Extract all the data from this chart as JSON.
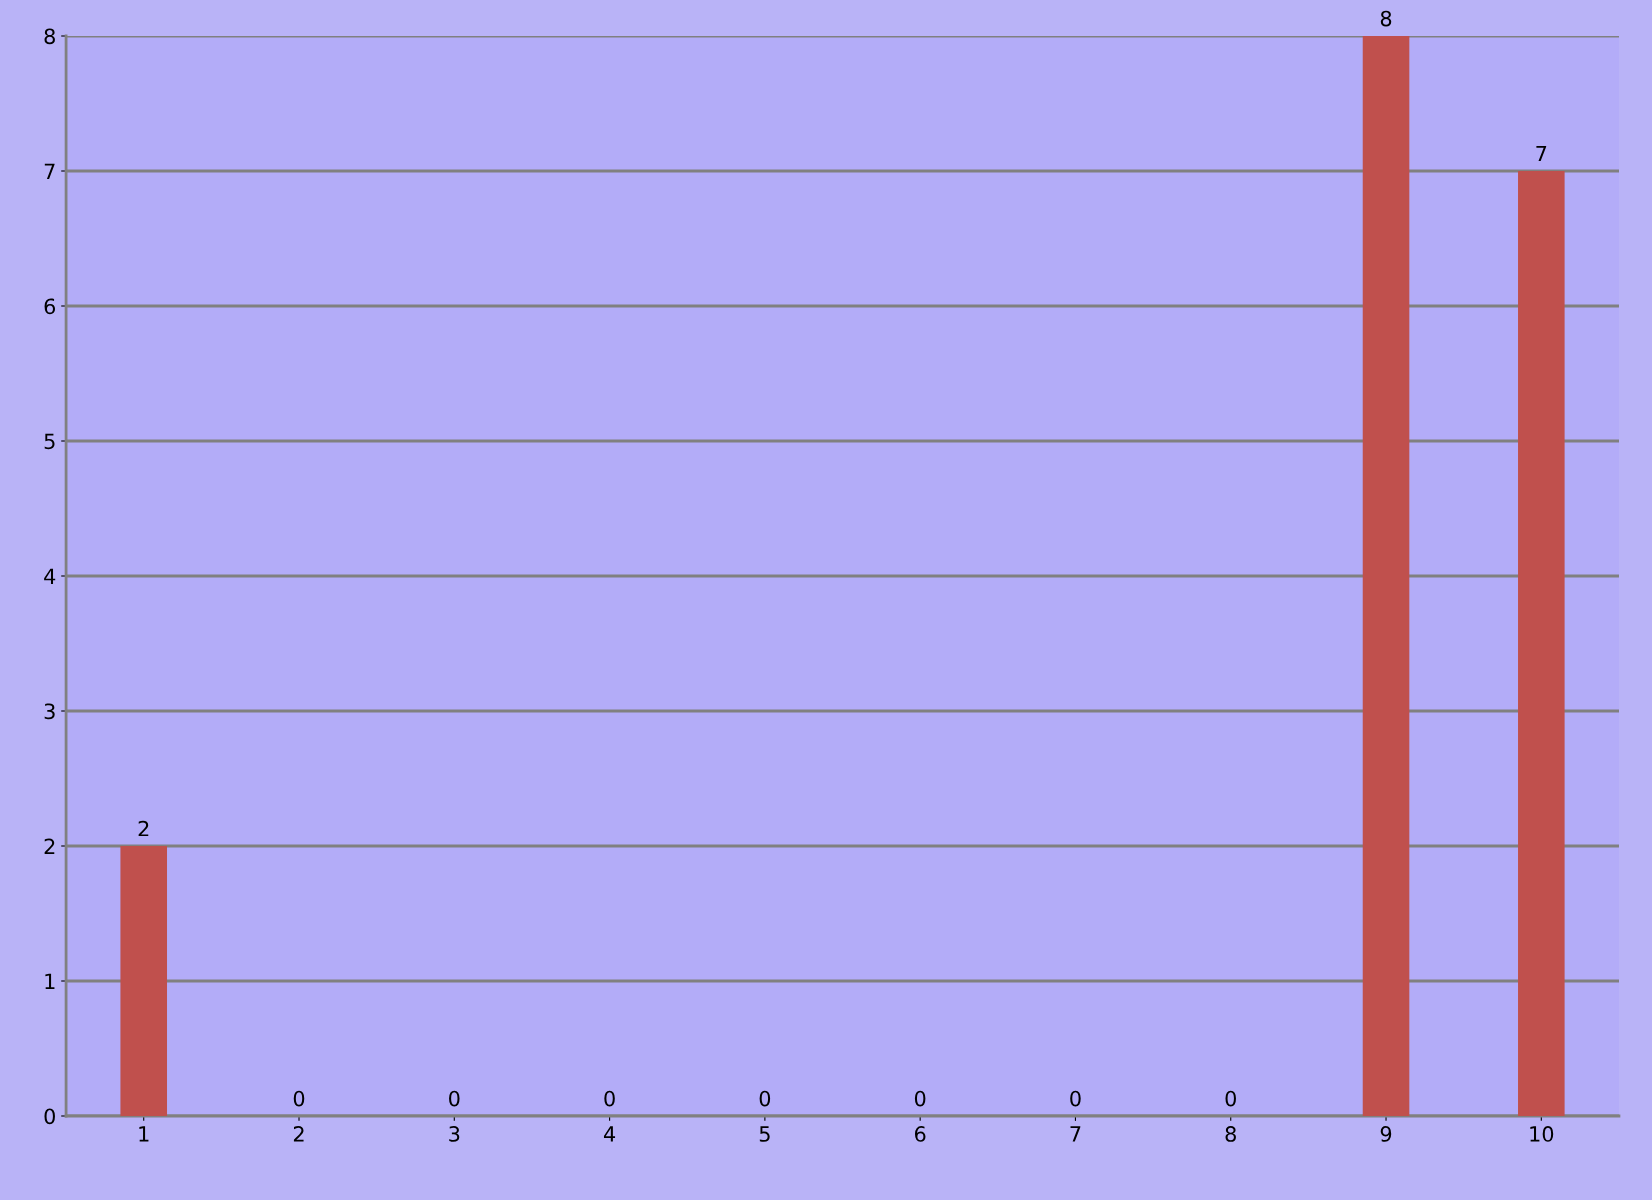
{
  "chart_data": {
    "type": "bar",
    "categories": [
      "1",
      "2",
      "3",
      "4",
      "5",
      "6",
      "7",
      "8",
      "9",
      "10"
    ],
    "values": [
      2,
      0,
      0,
      0,
      0,
      0,
      0,
      0,
      8,
      7
    ],
    "color": "#c0504d",
    "ylim": [
      0,
      8
    ],
    "yticks": [
      0,
      1,
      2,
      3,
      4,
      5,
      6,
      7,
      8
    ],
    "grid": "y",
    "data_labels": true
  }
}
